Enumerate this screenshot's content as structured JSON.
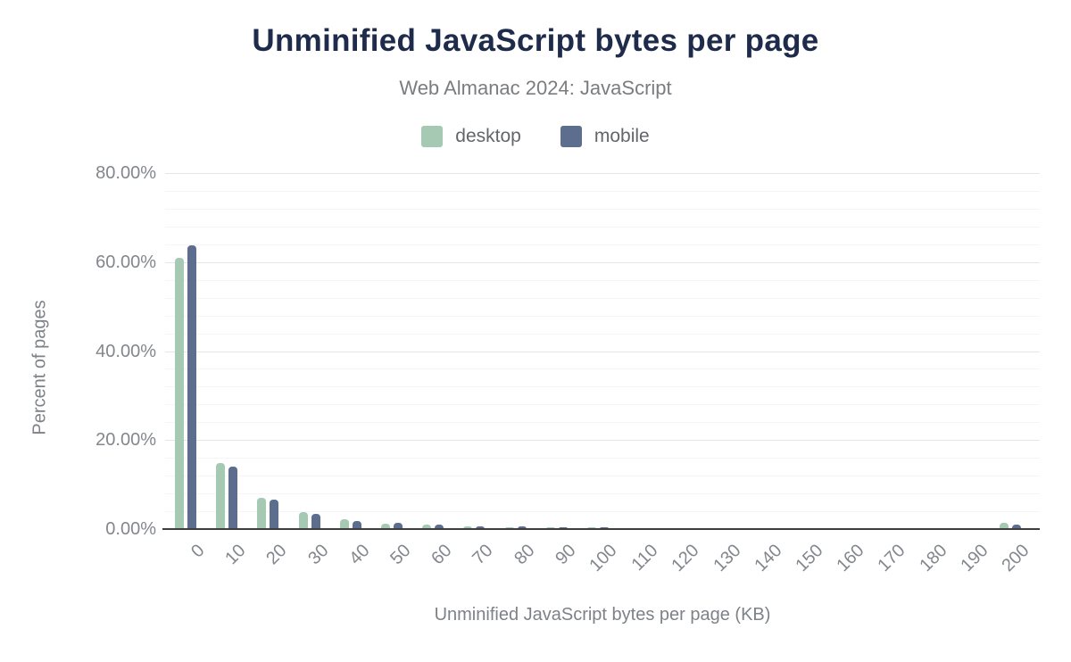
{
  "chart": {
    "title": "Unminified JavaScript bytes per page",
    "subtitle": "Web Almanac 2024: JavaScript",
    "legend": [
      {
        "label": "desktop",
        "color": "#a6c9b4"
      },
      {
        "label": "mobile",
        "color": "#5c6d8e"
      }
    ],
    "ylabel": "Percent of pages",
    "xlabel": "Unminified JavaScript bytes per page (KB)"
  },
  "chart_data": {
    "type": "bar",
    "title": "Unminified JavaScript bytes per page",
    "subtitle": "Web Almanac 2024: JavaScript",
    "categories": [
      "0",
      "10",
      "20",
      "30",
      "40",
      "50",
      "60",
      "70",
      "80",
      "90",
      "100",
      "110",
      "120",
      "130",
      "140",
      "150",
      "160",
      "170",
      "180",
      "190",
      "200"
    ],
    "series": [
      {
        "name": "desktop",
        "color": "#a6c9b4",
        "values": [
          61.0,
          14.8,
          7.1,
          3.9,
          2.3,
          1.3,
          0.95,
          0.65,
          0.5,
          0.4,
          0.35,
          0.28,
          0.22,
          0.18,
          0.15,
          0.13,
          0.12,
          0.1,
          0.1,
          0.08,
          1.4
        ]
      },
      {
        "name": "mobile",
        "color": "#5c6d8e",
        "values": [
          63.8,
          14.1,
          6.6,
          3.5,
          1.9,
          1.4,
          1.05,
          0.7,
          0.55,
          0.45,
          0.4,
          0.3,
          0.25,
          0.2,
          0.18,
          0.15,
          0.13,
          0.12,
          0.1,
          0.1,
          1.1
        ]
      }
    ],
    "xlabel": "Unminified JavaScript bytes per page (KB)",
    "ylabel": "Percent of pages",
    "ylim": [
      0,
      80
    ],
    "y_ticks": [
      {
        "value": 0,
        "label": "0.00%"
      },
      {
        "value": 20,
        "label": "20.00%"
      },
      {
        "value": 40,
        "label": "40.00%"
      },
      {
        "value": 60,
        "label": "60.00%"
      },
      {
        "value": 80,
        "label": "80.00%"
      }
    ],
    "grid": "horizontal major every 20%, minor every 4%",
    "legend_position": "top"
  }
}
